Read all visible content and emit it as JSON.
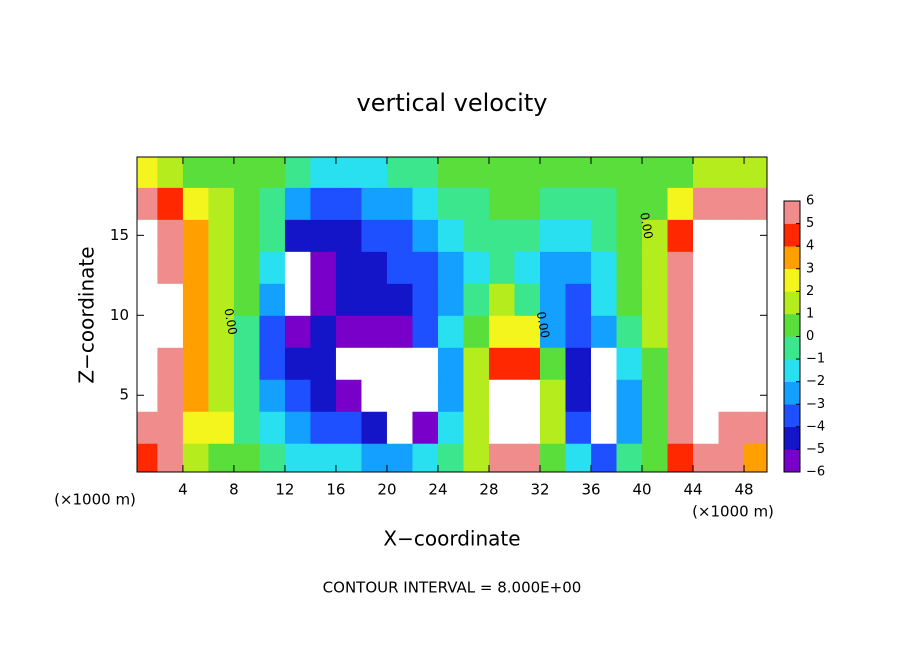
{
  "chart_data": {
    "type": "heatmap",
    "title": "vertical velocity",
    "x_label": "X−coordinate",
    "y_label": "Z−coordinate",
    "x_unit_labels": [
      "(×1000 m)",
      "(×1000 m)"
    ],
    "footer": "CONTOUR INTERVAL = 8.000E+00",
    "x": [
      1,
      3,
      5,
      7,
      9,
      11,
      13,
      15,
      17,
      19,
      21,
      23,
      25,
      27,
      29,
      31,
      33,
      35,
      37,
      39,
      41,
      43,
      45,
      47,
      49
    ],
    "y": [
      1,
      3,
      5,
      7,
      9,
      11,
      13,
      15,
      17,
      19
    ],
    "z": [
      [
        4,
        6,
        1,
        0.5,
        0,
        -1,
        -1.5,
        -2,
        -2,
        -2.5,
        -3,
        -2,
        -0.5,
        1,
        5,
        6,
        0.5,
        -2,
        -4,
        -1,
        0,
        4,
        6,
        5,
        3
      ],
      [
        6,
        6,
        2,
        2,
        -0.5,
        -2,
        -3,
        -3.5,
        -4,
        -5,
        -9,
        -6,
        -2,
        1,
        9,
        9,
        1,
        -4,
        -9,
        -3,
        0,
        5,
        9,
        6,
        5
      ],
      [
        9,
        6,
        3,
        1.5,
        -1,
        -3,
        -4,
        -5,
        -6,
        -9,
        -9,
        -9,
        -3,
        1,
        9,
        9,
        1,
        -5,
        -9,
        -3,
        0,
        5,
        9,
        9,
        9
      ],
      [
        9,
        6,
        3,
        1,
        -1,
        -4,
        -5,
        -5,
        -9,
        -9,
        -9,
        -9,
        -3,
        1,
        4,
        4,
        0,
        -5,
        -9,
        -2,
        0,
        5,
        9,
        9,
        9
      ],
      [
        9,
        7,
        3,
        1,
        -0.5,
        -4,
        -5.5,
        -5,
        -5.5,
        -6,
        -5.5,
        -4,
        -2,
        0,
        2,
        2,
        -3,
        -4,
        -3,
        -0.5,
        1,
        5,
        9,
        9,
        9
      ],
      [
        9,
        7,
        3,
        1,
        0,
        -3,
        -9,
        -5.5,
        -5,
        -4.5,
        -5,
        -4,
        -3,
        -1,
        1,
        -1,
        -3,
        -4,
        -2,
        0,
        1,
        5,
        9,
        9,
        9
      ],
      [
        9,
        6,
        3,
        1,
        0,
        -2,
        -9,
        -5.5,
        -5,
        -4.5,
        -4,
        -3.5,
        -3,
        -2,
        -1,
        -2,
        -2.5,
        -3,
        -2,
        0,
        1,
        5,
        9,
        9,
        9
      ],
      [
        9,
        5,
        3,
        1,
        0,
        -1,
        -4.5,
        -5,
        -5,
        -4,
        -3.5,
        -3,
        -2,
        -1,
        -0.5,
        -1,
        -1.5,
        -2,
        -1,
        0,
        1,
        4,
        8,
        9,
        9
      ],
      [
        5,
        4,
        2,
        1,
        0,
        -0.5,
        -3,
        -4,
        -3.5,
        -3,
        -2.5,
        -1.5,
        -1,
        -0.5,
        0,
        0,
        -0.5,
        -0.5,
        -0.5,
        0,
        0.5,
        2,
        5,
        6,
        6
      ],
      [
        2,
        1,
        0.5,
        0,
        0,
        0,
        -1,
        -1.5,
        -2,
        -1.5,
        -1,
        -0.5,
        0,
        0,
        0.5,
        0.5,
        0,
        0,
        0,
        0,
        0,
        0.5,
        1,
        1,
        1
      ]
    ],
    "xlim": [
      0.4,
      49.8
    ],
    "ylim": [
      0.2,
      19.9
    ],
    "xticks": [
      4,
      8,
      12,
      16,
      20,
      24,
      28,
      32,
      36,
      40,
      44,
      48
    ],
    "yticks": [
      5,
      10,
      15
    ],
    "zlim": [
      -6,
      6
    ],
    "colors": [
      "#7800c8",
      "#1414c8",
      "#1e50ff",
      "#14a0ff",
      "#28e0f0",
      "#3ce68c",
      "#5ade3c",
      "#b4ec1e",
      "#f5f51e",
      "#ffa000",
      "#ff2800",
      "#f08c8c"
    ],
    "out_of_range_color": "#ffffff",
    "colorbar_ticks": [
      {
        "value": -6,
        "label": "−6"
      },
      {
        "value": -5,
        "label": "−5"
      },
      {
        "value": -4,
        "label": "−4"
      },
      {
        "value": -3,
        "label": "−3"
      },
      {
        "value": -2,
        "label": "−2"
      },
      {
        "value": -1,
        "label": "−1"
      },
      0,
      1,
      2,
      3,
      4,
      5,
      6
    ],
    "contour_labels": [
      {
        "text": "0.00",
        "x": 7.7,
        "y": 9.6
      },
      {
        "text": "0.00",
        "x": 32.2,
        "y": 9.4
      },
      {
        "text": "0.00",
        "x": 40.3,
        "y": 15.6
      }
    ]
  }
}
